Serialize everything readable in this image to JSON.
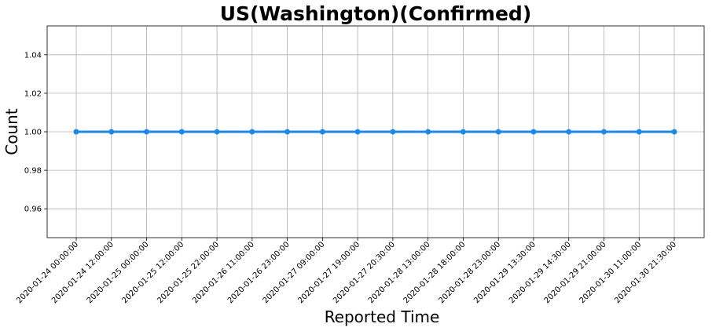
{
  "chart_data": {
    "type": "line",
    "title": "US(Washington)(Confirmed)",
    "xlabel": "Reported Time",
    "ylabel": "Count",
    "categories": [
      "2020-01-24 00:00:00",
      "2020-01-24 12:00:00",
      "2020-01-25 00:00:00",
      "2020-01-25 12:00:00",
      "2020-01-25 22:00:00",
      "2020-01-26 11:00:00",
      "2020-01-26 23:00:00",
      "2020-01-27 09:00:00",
      "2020-01-27 19:00:00",
      "2020-01-27 20:30:00",
      "2020-01-28 13:00:00",
      "2020-01-28 18:00:00",
      "2020-01-28 23:00:00",
      "2020-01-29 13:30:00",
      "2020-01-29 14:30:00",
      "2020-01-29 21:00:00",
      "2020-01-30 11:00:00",
      "2020-01-30 21:30:00"
    ],
    "values": [
      1,
      1,
      1,
      1,
      1,
      1,
      1,
      1,
      1,
      1,
      1,
      1,
      1,
      1,
      1,
      1,
      1,
      1
    ],
    "ylim": [
      0.945,
      1.055
    ],
    "yticks": [
      "0.96",
      "0.98",
      "1.00",
      "1.02",
      "1.04"
    ],
    "grid": true,
    "line_color": "#1e88e5"
  }
}
